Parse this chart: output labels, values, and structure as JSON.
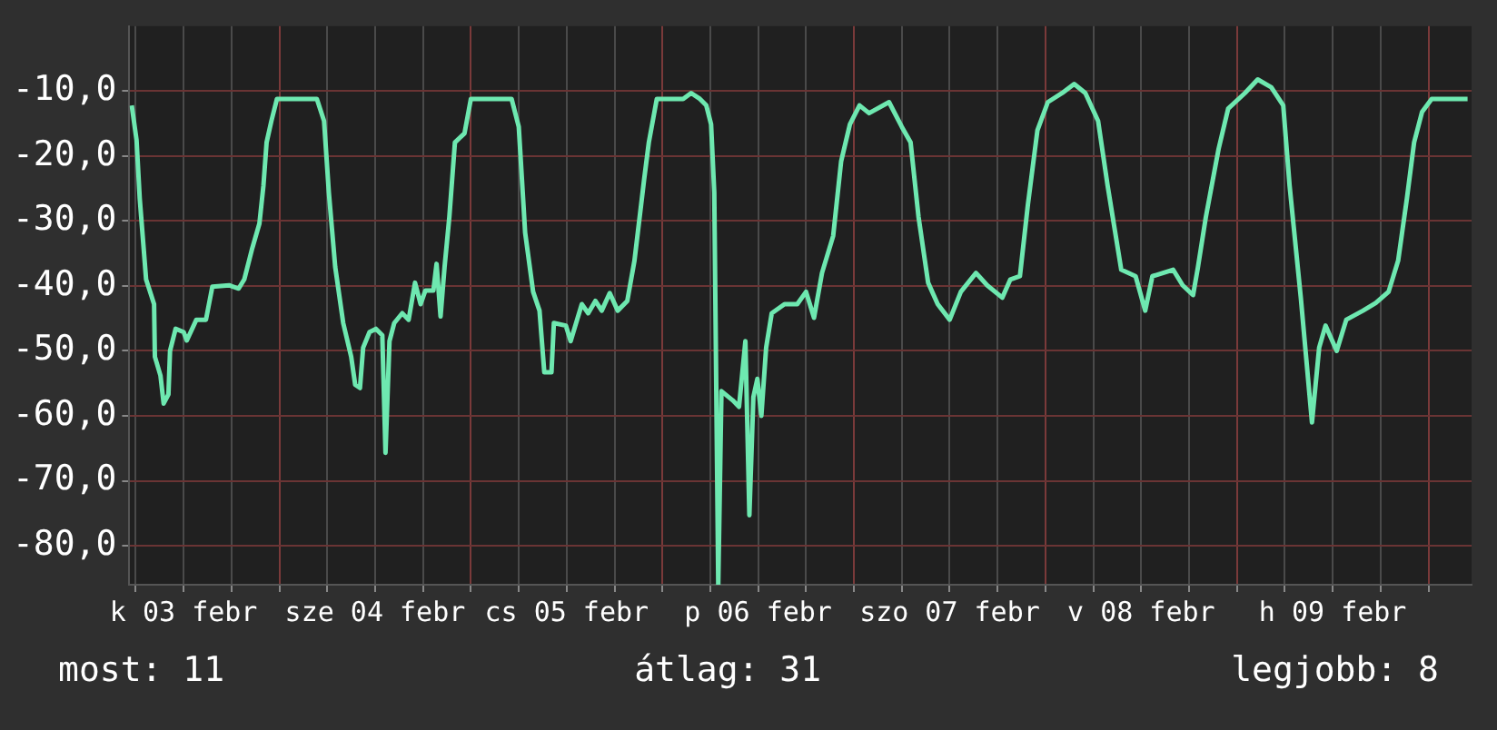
{
  "chart_data": {
    "type": "line",
    "annotations": [
      "most: 11",
      "átlag: 31",
      "legjobb: 8"
    ],
    "x": [
      "--02-03T05:30",
      "--02-03T06:06",
      "--02-03T06:30",
      "--02-03T07:18",
      "--02-03T08:18",
      "--02-03T08:24",
      "--02-03T09:06",
      "--02-03T09:30",
      "--02-03T10:06",
      "--02-03T10:18",
      "--02-03T11:00",
      "--02-03T12:00",
      "--02-03T12:24",
      "--02-03T13:36",
      "--02-03T14:48",
      "--02-03T15:36",
      "--02-03T17:42",
      "--02-03T18:54",
      "--02-03T19:36",
      "--02-03T20:36",
      "--02-03T21:30",
      "--02-03T22:00",
      "--02-03T22:24",
      "--02-03T23:00",
      "--02-03T23:42",
      "--02-04T04:42",
      "--02-04T05:36",
      "--02-04T06:12",
      "--02-04T07:00",
      "--02-04T08:00",
      "--02-04T09:00",
      "--02-04T09:30",
      "--02-04T10:06",
      "--02-04T10:30",
      "--02-04T11:18",
      "--02-04T12:06",
      "--02-04T12:54",
      "--02-04T13:18",
      "--02-04T13:48",
      "--02-04T14:24",
      "--02-04T15:24",
      "--02-04T16:12",
      "--02-04T17:00",
      "--02-04T17:42",
      "--02-04T18:18",
      "--02-04T19:18",
      "--02-04T19:42",
      "--02-04T20:12",
      "--02-04T20:42",
      "--02-04T21:18",
      "--02-04T22:00",
      "--02-04T23:12",
      "--02-05T00:00",
      "--02-05T05:06",
      "--02-05T06:00",
      "--02-05T06:48",
      "--02-05T07:48",
      "--02-05T08:36",
      "--02-05T09:12",
      "--02-05T10:06",
      "--02-05T10:24",
      "--02-05T11:54",
      "--02-05T12:30",
      "--02-05T13:54",
      "--02-05T14:42",
      "--02-05T15:36",
      "--02-05T16:24",
      "--02-05T17:24",
      "--02-05T18:24",
      "--02-05T19:36",
      "--02-05T20:30",
      "--02-05T21:42",
      "--02-05T22:18",
      "--02-05T23:18",
      "--02-06T02:36",
      "--02-06T03:36",
      "--02-06T04:42",
      "--02-06T05:30",
      "--02-06T06:06",
      "--02-06T06:30",
      "--02-06T07:00",
      "--02-06T07:24",
      "--02-06T08:48",
      "--02-06T09:36",
      "--02-06T10:24",
      "--02-06T10:54",
      "--02-06T11:24",
      "--02-06T11:54",
      "--02-06T12:24",
      "--02-06T13:00",
      "--02-06T13:42",
      "--02-06T15:18",
      "--02-06T16:54",
      "--02-06T18:00",
      "--02-06T19:00",
      "--02-06T20:00",
      "--02-06T21:24",
      "--02-06T22:24",
      "--02-06T23:30",
      "--02-07T00:42",
      "--02-07T01:54",
      "--02-07T04:24",
      "--02-07T06:00",
      "--02-07T07:06",
      "--02-07T08:06",
      "--02-07T09:18",
      "--02-07T10:30",
      "--02-07T12:00",
      "--02-07T13:24",
      "--02-07T15:18",
      "--02-07T16:42",
      "--02-07T18:36",
      "--02-07T19:36",
      "--02-07T20:48",
      "--02-07T21:48",
      "--02-07T23:00",
      "--02-08T00:18",
      "--02-08T02:06",
      "--02-08T03:36",
      "--02-08T05:00",
      "--02-08T06:36",
      "--02-08T07:48",
      "--02-08T09:30",
      "--02-08T11:18",
      "--02-08T12:30",
      "--02-08T13:24",
      "--02-08T16:00",
      "--02-08T17:12",
      "--02-08T18:30",
      "--02-08T19:06",
      "--02-08T20:06",
      "--02-08T21:42",
      "--02-08T22:54",
      "--02-09T01:00",
      "--02-09T02:36",
      "--02-09T04:18",
      "--02-09T05:48",
      "--02-09T06:36",
      "--02-09T08:00",
      "--02-09T09:24",
      "--02-09T10:18",
      "--02-09T11:06",
      "--02-09T12:30",
      "--02-09T13:42",
      "--02-09T15:48",
      "--02-09T17:24",
      "--02-09T19:00",
      "--02-09T20:12",
      "--02-09T21:18",
      "--02-09T22:12",
      "--02-09T23:12",
      "--02-10T00:24",
      "--02-10T04:54"
    ],
    "series": [
      {
        "color": "#6ee8b0",
        "values": [
          -12.2,
          -17.5,
          -26.5,
          -39,
          -42.8,
          -50.9,
          -53.8,
          -58.1,
          -56.7,
          -50,
          -46.6,
          -47.1,
          -48.4,
          -45.2,
          -45.2,
          -40.1,
          -39.9,
          -40.4,
          -39,
          -34.2,
          -30.4,
          -24.6,
          -17.9,
          -14.6,
          -11.2,
          -11.2,
          -14.6,
          -25.6,
          -37.1,
          -45.7,
          -50.9,
          -55.2,
          -55.7,
          -49.5,
          -47.1,
          -46.6,
          -47.6,
          -65.7,
          -48.5,
          -45.7,
          -44.2,
          -45.2,
          -39.5,
          -42.8,
          -40.7,
          -40.7,
          -36.6,
          -44.7,
          -37.1,
          -29.4,
          -17.9,
          -16.5,
          -11.2,
          -11.2,
          -15.5,
          -31.8,
          -40.9,
          -43.8,
          -53.3,
          -53.3,
          -45.7,
          -46.1,
          -48.5,
          -42.8,
          -44.2,
          -42.3,
          -43.8,
          -41.1,
          -43.8,
          -42.3,
          -36.1,
          -23.7,
          -17.9,
          -11.2,
          -11.2,
          -10.3,
          -11.2,
          -12.2,
          -15.1,
          -25.6,
          -86,
          -56.2,
          -57.6,
          -58.6,
          -48.5,
          -75.3,
          -57.1,
          -54.3,
          -60,
          -49.5,
          -44.2,
          -42.8,
          -42.8,
          -40.9,
          -44.9,
          -38.0,
          -32.3,
          -20.8,
          -15.1,
          -12.2,
          -13.4,
          -11.7,
          -15.5,
          -17.9,
          -29.4,
          -39.5,
          -42.8,
          -45.2,
          -40.9,
          -38.0,
          -39.9,
          -41.8,
          -39,
          -38.5,
          -27.5,
          -16.0,
          -11.7,
          -10.3,
          -8.9,
          -10.3,
          -14.6,
          -24.6,
          -37.5,
          -38.5,
          -43.8,
          -38.5,
          -37.5,
          -39.9,
          -41.4,
          -37.2,
          -29.4,
          -18.9,
          -12.7,
          -10.3,
          -8.2,
          -9.4,
          -12.2,
          -24.6,
          -41.8,
          -61,
          -49.5,
          -46.1,
          -50,
          -45.2,
          -43.8,
          -42.6,
          -40.9,
          -36.1,
          -26.5,
          -17.9,
          -13.2,
          -11.2,
          -11.2
        ]
      }
    ],
    "xlim": [
      "--02-03T05:12",
      "--02-10T05:24"
    ],
    "xticks": [
      {
        "value": "--02-03T06:00",
        "label": null
      },
      {
        "value": "--02-03T12:00",
        "label": "k 03 febr"
      },
      {
        "value": "--02-03T18:00",
        "label": null
      },
      {
        "value": "--02-04T00:00",
        "label": null
      },
      {
        "value": "--02-04T06:00",
        "label": null
      },
      {
        "value": "--02-04T12:00",
        "label": "sze 04 febr"
      },
      {
        "value": "--02-04T18:00",
        "label": null
      },
      {
        "value": "--02-05T00:00",
        "label": null
      },
      {
        "value": "--02-05T06:00",
        "label": null
      },
      {
        "value": "--02-05T12:00",
        "label": "cs 05 febr"
      },
      {
        "value": "--02-05T18:00",
        "label": null
      },
      {
        "value": "--02-06T00:00",
        "label": null
      },
      {
        "value": "--02-06T06:00",
        "label": null
      },
      {
        "value": "--02-06T12:00",
        "label": "p 06 febr"
      },
      {
        "value": "--02-06T18:00",
        "label": null
      },
      {
        "value": "--02-07T00:00",
        "label": null
      },
      {
        "value": "--02-07T06:00",
        "label": null
      },
      {
        "value": "--02-07T12:00",
        "label": "szo 07 febr"
      },
      {
        "value": "--02-07T18:00",
        "label": null
      },
      {
        "value": "--02-08T00:00",
        "label": null
      },
      {
        "value": "--02-08T06:00",
        "label": null
      },
      {
        "value": "--02-08T12:00",
        "label": "v 08 febr"
      },
      {
        "value": "--02-08T18:00",
        "label": null
      },
      {
        "value": "--02-09T00:00",
        "label": null
      },
      {
        "value": "--02-09T06:00",
        "label": null
      },
      {
        "value": "--02-09T12:00",
        "label": "h 09 febr"
      },
      {
        "value": "--02-09T18:00",
        "label": null
      },
      {
        "value": "--02-10T00:00",
        "label": null
      }
    ],
    "ylim": [
      -86,
      0
    ],
    "yticks": [
      {
        "value": -80,
        "label": "-80,0"
      },
      {
        "value": -70,
        "label": "-70,0"
      },
      {
        "value": -60,
        "label": "-60,0"
      },
      {
        "value": -50,
        "label": "-50,0"
      },
      {
        "value": -40,
        "label": "-40,0"
      },
      {
        "value": -30,
        "label": "-30,0"
      },
      {
        "value": -20,
        "label": "-20,0"
      },
      {
        "value": -10,
        "label": "-10,0"
      }
    ],
    "grid": true,
    "legend": false,
    "marker": "none",
    "line_style": "solid"
  }
}
